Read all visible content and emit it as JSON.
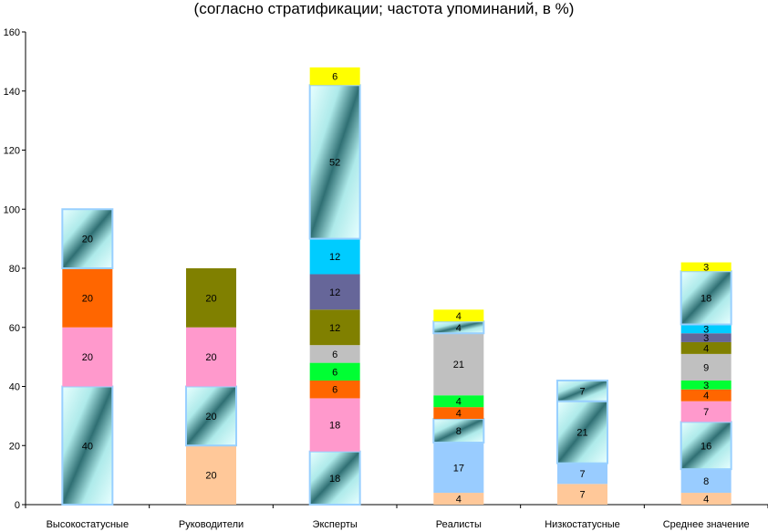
{
  "chart_data": {
    "type": "bar",
    "stacked": true,
    "title": "(согласно стратификации; частота упоминаний, в %)",
    "xlabel": "",
    "ylabel": "",
    "ylim": [
      0,
      160
    ],
    "yticks": [
      0,
      20,
      40,
      60,
      80,
      100,
      120,
      140,
      160
    ],
    "grid": false,
    "legend": "none",
    "categories": [
      "Высокостатусные",
      "Руководители",
      "Эксперты",
      "Реалисты",
      "Низкостатусные",
      "Среднее значение"
    ],
    "segment_order": [
      "peach",
      "lightblue",
      "cyan_gradient_low",
      "pink",
      "orange",
      "green",
      "gray",
      "olive",
      "purple",
      "cyan",
      "cyan_gradient_high",
      "yellow"
    ],
    "segment_colors": {
      "peach": "#ffc899",
      "lightblue": "#99ccff",
      "cyan_gradient_low": "#bff2f2",
      "pink": "#ff99cc",
      "orange": "#ff6600",
      "green": "#00ff33",
      "gray": "#c0c0c0",
      "olive": "#808000",
      "purple": "#666699",
      "cyan": "#00ccff",
      "cyan_gradient_high": "#bff2f2",
      "yellow": "#ffff00"
    },
    "bars": [
      [
        {
          "key": "cyan_gradient_low",
          "value": 40
        },
        {
          "key": "pink",
          "value": 20
        },
        {
          "key": "orange",
          "value": 20
        },
        {
          "key": "cyan_gradient_high",
          "value": 20
        }
      ],
      [
        {
          "key": "peach",
          "value": 20
        },
        {
          "key": "cyan_gradient_low",
          "value": 20
        },
        {
          "key": "pink",
          "value": 20
        },
        {
          "key": "olive",
          "value": 20
        }
      ],
      [
        {
          "key": "cyan_gradient_low",
          "value": 18
        },
        {
          "key": "pink",
          "value": 18
        },
        {
          "key": "orange",
          "value": 6
        },
        {
          "key": "green",
          "value": 6
        },
        {
          "key": "gray",
          "value": 6
        },
        {
          "key": "olive",
          "value": 12
        },
        {
          "key": "purple",
          "value": 12
        },
        {
          "key": "cyan",
          "value": 12
        },
        {
          "key": "cyan_gradient_high",
          "value": 52
        },
        {
          "key": "yellow",
          "value": 6
        }
      ],
      [
        {
          "key": "peach",
          "value": 4
        },
        {
          "key": "lightblue",
          "value": 17
        },
        {
          "key": "cyan_gradient_low",
          "value": 8
        },
        {
          "key": "orange",
          "value": 4
        },
        {
          "key": "green",
          "value": 4
        },
        {
          "key": "gray",
          "value": 21
        },
        {
          "key": "cyan_gradient_high",
          "value": 4
        },
        {
          "key": "yellow",
          "value": 4
        }
      ],
      [
        {
          "key": "peach",
          "value": 7
        },
        {
          "key": "lightblue",
          "value": 7
        },
        {
          "key": "cyan_gradient_low",
          "value": 21
        },
        {
          "key": "cyan_gradient_high",
          "value": 7
        }
      ],
      [
        {
          "key": "peach",
          "value": 4
        },
        {
          "key": "lightblue",
          "value": 8
        },
        {
          "key": "cyan_gradient_low",
          "value": 16
        },
        {
          "key": "pink",
          "value": 7
        },
        {
          "key": "orange",
          "value": 4
        },
        {
          "key": "green",
          "value": 3
        },
        {
          "key": "gray",
          "value": 9
        },
        {
          "key": "olive",
          "value": 4
        },
        {
          "key": "purple",
          "value": 3
        },
        {
          "key": "cyan",
          "value": 3
        },
        {
          "key": "cyan_gradient_high",
          "value": 18
        },
        {
          "key": "yellow",
          "value": 3
        }
      ]
    ]
  }
}
